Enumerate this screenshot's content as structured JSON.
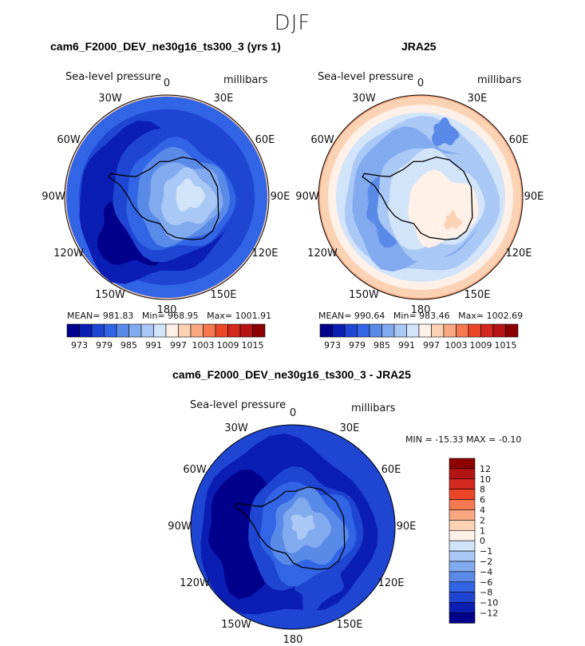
{
  "figure_title": "DJF",
  "colors": {
    "ramp": [
      "#00008c",
      "#0a1eb4",
      "#1e46d2",
      "#3264e6",
      "#5a8ae8",
      "#82aaef",
      "#aac8f5",
      "#d2e4fa",
      "#fff0e8",
      "#fcd2b4",
      "#faa882",
      "#f57850",
      "#eb4628",
      "#d2281e",
      "#b41414",
      "#8c0000"
    ],
    "coast": "#000000"
  },
  "panels": [
    {
      "id": "model",
      "title": "cam6_F2000_DEV_ne30g16_ts300_3 (yrs 1)",
      "left_label": "Sea-level pressure",
      "right_label": "millibars",
      "lon_labels": [
        "0",
        "30E",
        "60E",
        "90E",
        "120E",
        "150E",
        "180",
        "150W",
        "120W",
        "90W",
        "60W",
        "30W"
      ],
      "stats": {
        "mean_label": "MEAN=",
        "mean": "981.83",
        "min_label": "Min=",
        "min": "968.95",
        "max_label": "Max=",
        "max": "1001.91"
      },
      "colorbar_ticks": [
        "973",
        "979",
        "985",
        "991",
        "997",
        "1003",
        "1009",
        "1015"
      ]
    },
    {
      "id": "obs",
      "title": "JRA25",
      "left_label": "Sea-level pressure",
      "right_label": "millibars",
      "lon_labels": [
        "0",
        "30E",
        "60E",
        "90E",
        "120E",
        "150E",
        "180",
        "150W",
        "120W",
        "90W",
        "60W",
        "30W"
      ],
      "stats": {
        "mean_label": "MEAN=",
        "mean": "990.64",
        "min_label": "Min=",
        "min": "983.46",
        "max_label": "Max=",
        "max": "1002.69"
      },
      "colorbar_ticks": [
        "973",
        "979",
        "985",
        "991",
        "997",
        "1003",
        "1009",
        "1015"
      ]
    },
    {
      "id": "diff",
      "title": "cam6_F2000_DEV_ne30g16_ts300_3 - JRA25",
      "left_label": "Sea-level pressure",
      "right_label": "millibars",
      "lon_labels": [
        "0",
        "30E",
        "60E",
        "90E",
        "120E",
        "150E",
        "180",
        "150W",
        "120W",
        "90W",
        "60W",
        "30W"
      ],
      "stats_text": "MIN = -15.33 MAX =  -0.10",
      "colorbar_ticks": [
        "12",
        "10",
        "8",
        "6",
        "4",
        "2",
        "1",
        "0",
        "−1",
        "−2",
        "−4",
        "−6",
        "−8",
        "−10",
        "−12"
      ]
    }
  ]
}
